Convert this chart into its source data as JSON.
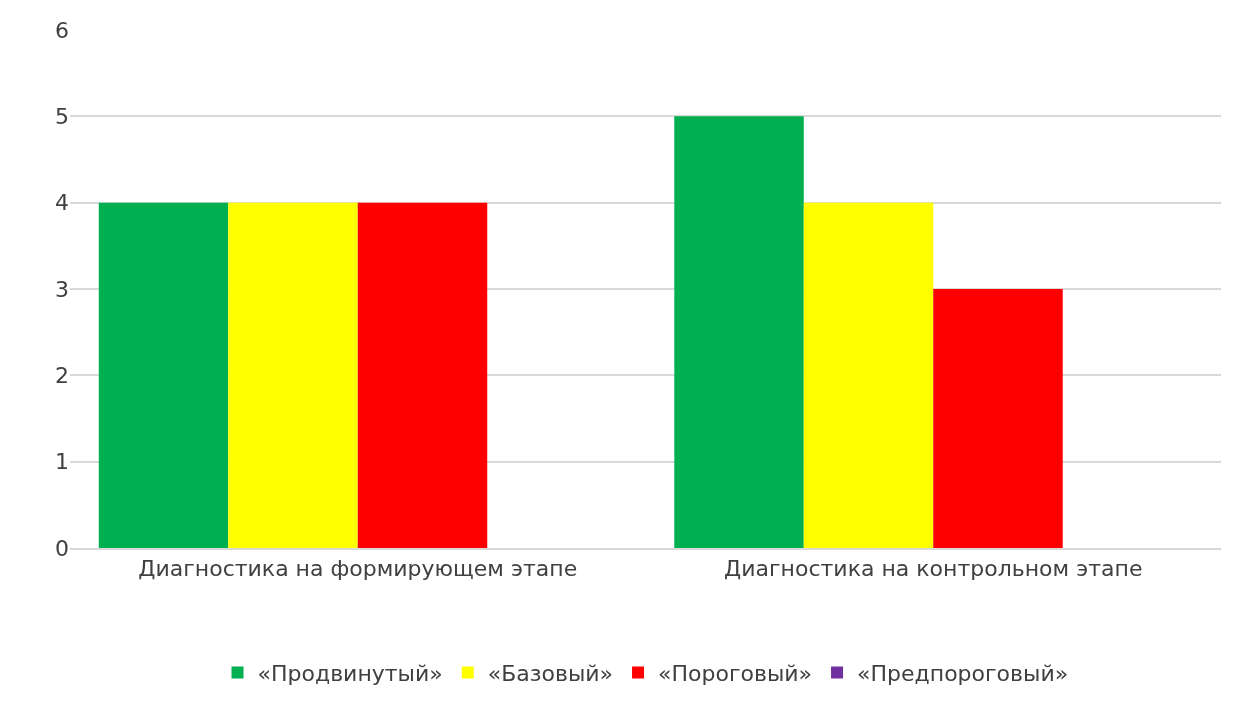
{
  "chart_data": {
    "type": "bar",
    "categories": [
      "Диагностика на формирующем этапе",
      "Диагностика на контрольном этапе"
    ],
    "series": [
      {
        "name": "«Продвинутый»",
        "color": "#00b050",
        "values": [
          4,
          5
        ]
      },
      {
        "name": "«Базовый»",
        "color": "#ffff00",
        "values": [
          4,
          4
        ]
      },
      {
        "name": "«Пороговый»",
        "color": "#ff0000",
        "values": [
          4,
          3
        ]
      },
      {
        "name": "«Предпороговый»",
        "color": "#7030a0",
        "values": [
          0,
          0
        ]
      }
    ],
    "ylim": [
      0,
      6
    ],
    "yticks": [
      0,
      1,
      2,
      3,
      4,
      5,
      6
    ],
    "grid": "y",
    "legend": "bottom"
  }
}
